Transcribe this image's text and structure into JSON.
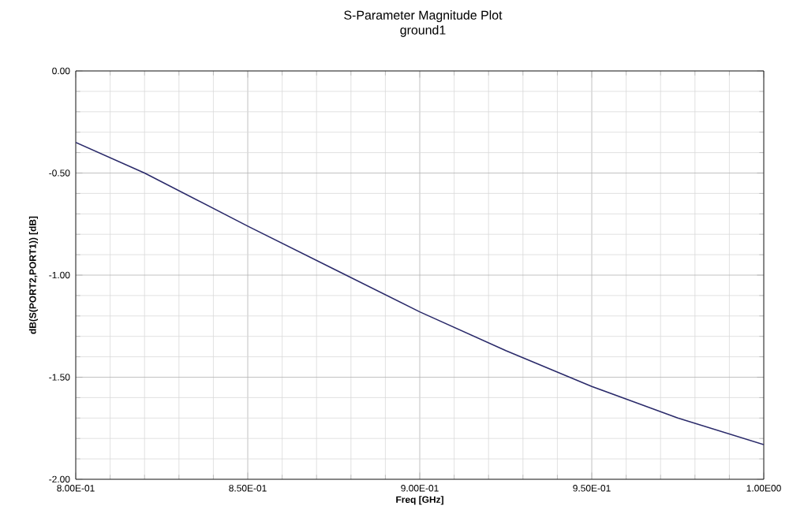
{
  "chart_data": {
    "type": "line",
    "title": "S-Parameter Magnitude Plot",
    "subtitle": "ground1",
    "xlabel": "Freq [GHz]",
    "ylabel": "dB(S(PORT2,PORT1)) [dB]",
    "x": [
      0.8,
      0.82,
      0.85,
      0.875,
      0.9,
      0.925,
      0.95,
      0.975,
      1.0
    ],
    "series": [
      {
        "color": "#2a2a6a",
        "values": [
          -0.35,
          -0.5,
          -0.76,
          -0.97,
          -1.18,
          -1.37,
          -1.545,
          -1.7,
          -1.83
        ]
      }
    ],
    "xlim": [
      0.8,
      1.0
    ],
    "ylim": [
      -2.0,
      0.0
    ],
    "xticks": [
      {
        "value": 0.8,
        "label": "8.00E-01"
      },
      {
        "value": 0.85,
        "label": "8.50E-01"
      },
      {
        "value": 0.9,
        "label": "9.00E-01"
      },
      {
        "value": 0.95,
        "label": "9.50E-01"
      },
      {
        "value": 1.0,
        "label": "1.00E00"
      }
    ],
    "yticks": [
      {
        "value": -2.0,
        "label": "-2.00"
      },
      {
        "value": -1.5,
        "label": "-1.50"
      },
      {
        "value": -1.0,
        "label": "-1.00"
      },
      {
        "value": -0.5,
        "label": "-0.50"
      },
      {
        "value": 0.0,
        "label": "0.00"
      }
    ],
    "grid": true,
    "marker": "none",
    "line_style": "solid"
  }
}
